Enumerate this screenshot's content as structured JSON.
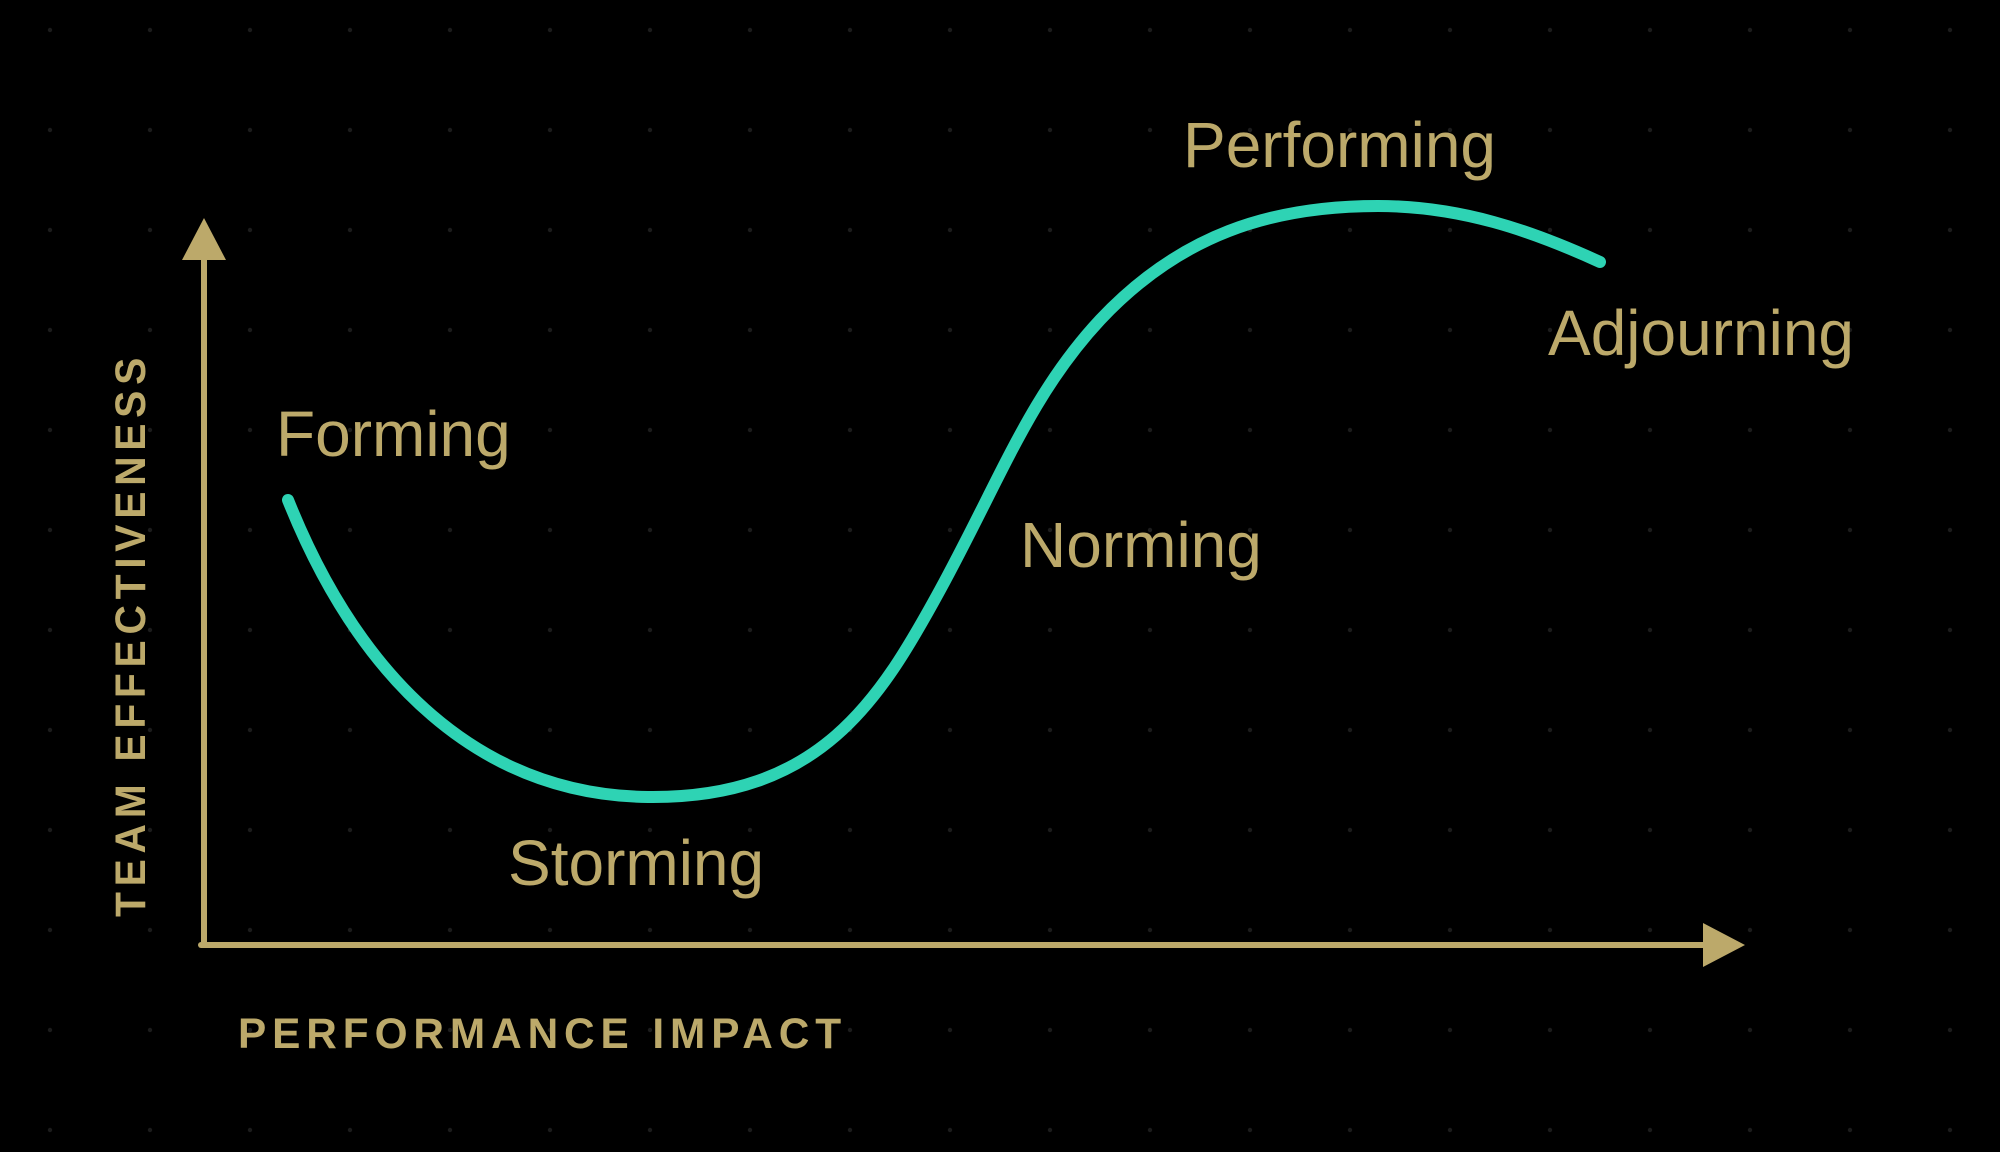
{
  "colors": {
    "background": "#000000",
    "accent_gold": "#BCA96A",
    "curve_teal": "#2ED3B4",
    "grid_dot": "#1C1C1C"
  },
  "axes": {
    "y_label": "TEAM EFFECTIVENESS",
    "x_label": "PERFORMANCE IMPACT"
  },
  "stages": [
    {
      "id": "forming",
      "label": "Forming"
    },
    {
      "id": "storming",
      "label": "Storming"
    },
    {
      "id": "norming",
      "label": "Norming"
    },
    {
      "id": "performing",
      "label": "Performing"
    },
    {
      "id": "adjourning",
      "label": "Adjourning"
    }
  ]
}
